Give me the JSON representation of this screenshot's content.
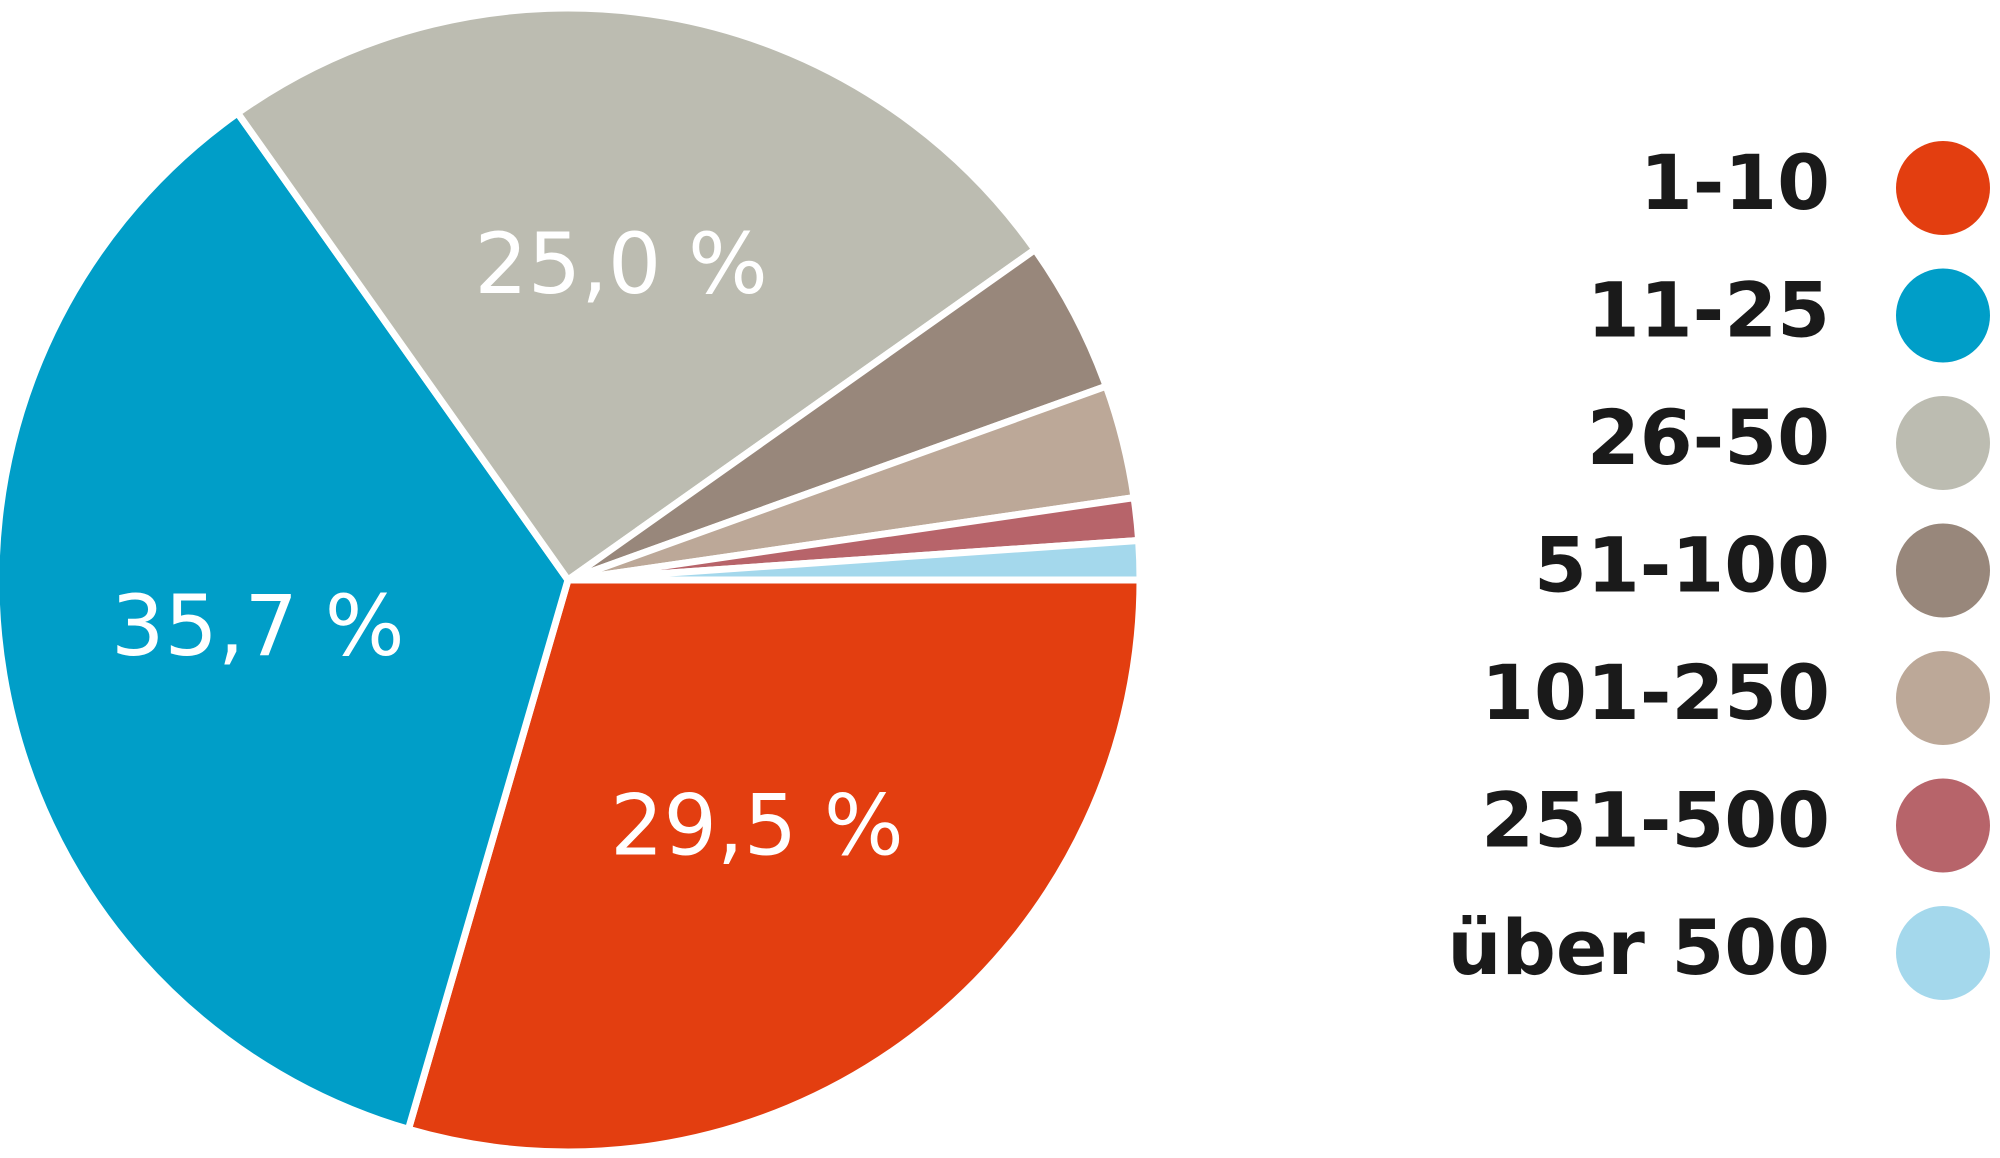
{
  "chart_data": {
    "type": "pie",
    "categories": [
      "1-10",
      "11-25",
      "26-50",
      "51-100",
      "101-250",
      "251-500",
      "über 500"
    ],
    "values": [
      29.5,
      35.7,
      25.0,
      4.3,
      3.2,
      1.2,
      1.1
    ],
    "value_labels": [
      "29,5 %",
      "35,7 %",
      "25,0 %",
      null,
      null,
      null,
      null
    ],
    "colors": [
      "#e33e10",
      "#009ec8",
      "#bcbcb1",
      "#98877b",
      "#bca898",
      "#b7646a",
      "#a4d8ec"
    ],
    "legend": "right"
  }
}
